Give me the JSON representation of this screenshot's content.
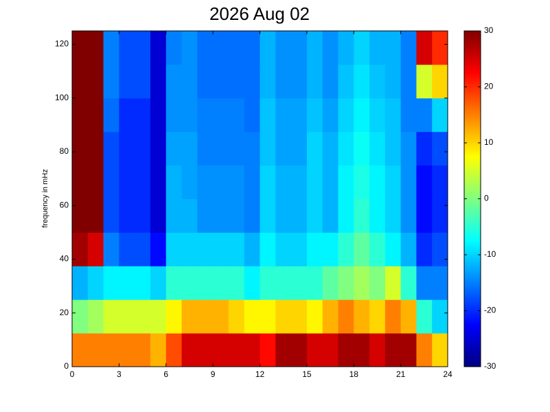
{
  "chart_data": {
    "type": "heatmap",
    "title": "2026 Aug 02",
    "y_label": "frequency in mHz",
    "xlim": [
      0,
      24
    ],
    "xticks": [
      0,
      3,
      6,
      9,
      12,
      15,
      18,
      21,
      24
    ],
    "ylim": [
      0,
      125
    ],
    "yticks": [
      0,
      20,
      40,
      60,
      80,
      100,
      120
    ],
    "x_bins": [
      0,
      1,
      2,
      3,
      4,
      5,
      6,
      7,
      8,
      9,
      10,
      11,
      12,
      13,
      14,
      15,
      16,
      17,
      18,
      19,
      20,
      21,
      22,
      23,
      24
    ],
    "y_bins": [
      0,
      12.5,
      25,
      37.5,
      50,
      62.5,
      75,
      87.5,
      100,
      112.5,
      125
    ],
    "values": [
      [
        15,
        15,
        15,
        15,
        15,
        12,
        18,
        25,
        25,
        25,
        25,
        25,
        22,
        28,
        28,
        25,
        25,
        28,
        28,
        25,
        28,
        28,
        15,
        10
      ],
      [
        0,
        2,
        5,
        5,
        5,
        5,
        8,
        12,
        12,
        12,
        10,
        8,
        8,
        10,
        10,
        8,
        12,
        15,
        12,
        10,
        15,
        12,
        -5,
        -10
      ],
      [
        -12,
        -10,
        -8,
        -8,
        -8,
        -10,
        -5,
        -5,
        -5,
        -5,
        -5,
        -8,
        -5,
        -5,
        -5,
        -5,
        -2,
        0,
        2,
        0,
        5,
        -5,
        -15,
        -15
      ],
      [
        28,
        25,
        -15,
        -18,
        -18,
        -22,
        -10,
        -10,
        -10,
        -10,
        -10,
        -12,
        -8,
        -10,
        -10,
        -8,
        -8,
        -5,
        -2,
        -5,
        -8,
        -12,
        -20,
        -18
      ],
      [
        30,
        30,
        -18,
        -20,
        -20,
        -25,
        -12,
        -12,
        -14,
        -14,
        -14,
        -15,
        -10,
        -12,
        -12,
        -10,
        -12,
        -8,
        -5,
        -8,
        -10,
        -14,
        -22,
        -20
      ],
      [
        30,
        30,
        -18,
        -20,
        -20,
        -25,
        -12,
        -13,
        -14,
        -14,
        -14,
        -15,
        -10,
        -12,
        -12,
        -10,
        -12,
        -8,
        -6,
        -8,
        -10,
        -14,
        -22,
        -20
      ],
      [
        30,
        30,
        -18,
        -20,
        -20,
        -25,
        -13,
        -13,
        -15,
        -15,
        -15,
        -15,
        -11,
        -13,
        -13,
        -10,
        -12,
        -9,
        -7,
        -9,
        -11,
        -14,
        -20,
        -18
      ],
      [
        30,
        30,
        -16,
        -20,
        -20,
        -25,
        -14,
        -14,
        -15,
        -15,
        -15,
        -16,
        -11,
        -13,
        -13,
        -11,
        -13,
        -10,
        -8,
        -10,
        -11,
        -15,
        -15,
        -10
      ],
      [
        30,
        30,
        -15,
        -18,
        -18,
        -25,
        -14,
        -14,
        -16,
        -16,
        -16,
        -16,
        -12,
        -14,
        -14,
        -12,
        -14,
        -11,
        -9,
        -11,
        -12,
        -15,
        5,
        10
      ],
      [
        30,
        30,
        -15,
        -18,
        -18,
        -25,
        -15,
        -14,
        -16,
        -16,
        -16,
        -16,
        -12,
        -14,
        -14,
        -12,
        -14,
        -12,
        -10,
        -12,
        -12,
        -15,
        25,
        20
      ]
    ],
    "zlim": [
      -30,
      30
    ],
    "zticks": [
      -30,
      -20,
      -10,
      0,
      10,
      20,
      30
    ],
    "colormap": "jet"
  }
}
